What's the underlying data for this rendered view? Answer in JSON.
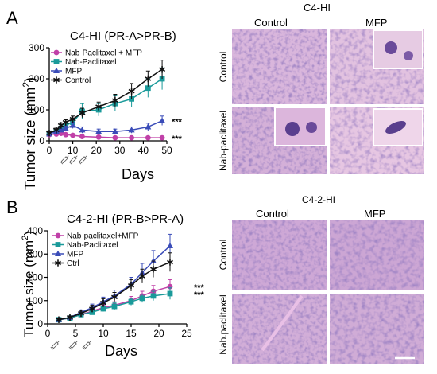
{
  "panels": [
    {
      "letter": "A",
      "chart_title": "C4-HI (PR-A>PR-B)",
      "ylabel": "Tumor size (mm",
      "ylabel_sup": "2",
      "ylabel_close": ")",
      "xlabel": "Days",
      "significance": [
        "***",
        "***"
      ],
      "histo": {
        "title": "C4-HI",
        "col_labels": [
          "Control",
          "MFP"
        ],
        "row_labels": [
          "Control",
          "Nab-paclitaxel"
        ]
      }
    },
    {
      "letter": "B",
      "chart_title": "C4-2-HI (PR-B>PR-A)",
      "ylabel": "Tumor size (mm",
      "ylabel_sup": "2",
      "ylabel_close": ")",
      "xlabel": "Days",
      "significance": [
        "***",
        "***"
      ],
      "histo": {
        "title": "C4-2-HI",
        "col_labels": [
          "Control",
          "MFP"
        ],
        "row_labels": [
          "Control",
          "Nab.paclitaxel"
        ]
      }
    }
  ],
  "colors": {
    "combo": "#c040a8",
    "nab": "#1a9a9a",
    "mfp": "#3a4cb8",
    "ctrl": "#111111",
    "tissue_bg": "#d4b0d8",
    "nuclei": "#5a3f8e"
  },
  "chart_data": [
    {
      "type": "line",
      "title": "C4-HI (PR-A>PR-B)",
      "xlabel": "Days",
      "ylabel": "Tumor size (mm2)",
      "xlim": [
        0,
        50
      ],
      "ylim": [
        0,
        300
      ],
      "xticks": [
        0,
        10,
        20,
        30,
        40,
        50
      ],
      "yticks": [
        0,
        100,
        200,
        300
      ],
      "legend": "top-left",
      "series": [
        {
          "name": "Nab-Paclitaxel + MFP",
          "marker": "circle",
          "color_key": "combo",
          "x": [
            0,
            3,
            5,
            7,
            10,
            14,
            21,
            28,
            35,
            42,
            48
          ],
          "y": [
            20,
            22,
            24,
            20,
            18,
            14,
            12,
            10,
            10,
            10,
            10
          ],
          "err": [
            4,
            4,
            4,
            4,
            3,
            3,
            3,
            2,
            2,
            2,
            2
          ]
        },
        {
          "name": "Nab-Paclitaxel",
          "marker": "square",
          "color_key": "nab",
          "x": [
            0,
            3,
            5,
            7,
            10,
            14,
            21,
            28,
            35,
            42,
            48
          ],
          "y": [
            25,
            30,
            40,
            50,
            60,
            95,
            100,
            120,
            135,
            170,
            200
          ],
          "err": [
            5,
            6,
            8,
            10,
            12,
            25,
            20,
            25,
            25,
            30,
            35
          ]
        },
        {
          "name": "MFP",
          "marker": "triangle",
          "color_key": "mfp",
          "x": [
            0,
            3,
            5,
            7,
            10,
            14,
            21,
            28,
            35,
            42,
            48
          ],
          "y": [
            22,
            30,
            35,
            40,
            50,
            35,
            30,
            30,
            35,
            45,
            65
          ],
          "err": [
            4,
            5,
            6,
            8,
            10,
            10,
            8,
            8,
            10,
            12,
            15
          ]
        },
        {
          "name": "Control",
          "marker": "star",
          "color_key": "ctrl",
          "x": [
            0,
            3,
            5,
            7,
            10,
            14,
            21,
            28,
            35,
            42,
            48
          ],
          "y": [
            25,
            35,
            50,
            60,
            70,
            90,
            110,
            130,
            160,
            200,
            230
          ],
          "err": [
            5,
            6,
            8,
            8,
            10,
            15,
            15,
            20,
            25,
            25,
            30
          ]
        }
      ]
    },
    {
      "type": "line",
      "title": "C4-2-HI (PR-B>PR-A)",
      "xlabel": "Days",
      "ylabel": "Tumor size (mm2)",
      "xlim": [
        0,
        25
      ],
      "ylim": [
        0,
        400
      ],
      "xticks": [
        0,
        5,
        10,
        15,
        20,
        25
      ],
      "yticks": [
        0,
        100,
        200,
        300,
        400
      ],
      "legend": "top-left",
      "series": [
        {
          "name": "Nab-paclitaxel+MFP",
          "marker": "circle",
          "color_key": "combo",
          "x": [
            2,
            4,
            6,
            8,
            10,
            12,
            15,
            17,
            19,
            22
          ],
          "y": [
            18,
            25,
            40,
            55,
            70,
            80,
            100,
            120,
            140,
            160
          ],
          "err": [
            4,
            5,
            8,
            10,
            12,
            15,
            18,
            20,
            25,
            30
          ]
        },
        {
          "name": "Nab-Paclitaxel",
          "marker": "square",
          "color_key": "nab",
          "x": [
            2,
            4,
            6,
            8,
            10,
            12,
            15,
            17,
            19,
            22
          ],
          "y": [
            18,
            25,
            40,
            50,
            65,
            75,
            95,
            110,
            120,
            130
          ],
          "err": [
            4,
            5,
            8,
            10,
            12,
            15,
            15,
            18,
            20,
            25
          ]
        },
        {
          "name": "MFP",
          "marker": "triangle",
          "color_key": "mfp",
          "x": [
            2,
            4,
            6,
            8,
            10,
            12,
            15,
            17,
            19,
            22
          ],
          "y": [
            18,
            28,
            50,
            70,
            95,
            120,
            170,
            220,
            270,
            335
          ],
          "err": [
            4,
            6,
            10,
            15,
            20,
            25,
            30,
            40,
            45,
            50
          ]
        },
        {
          "name": "Ctrl",
          "marker": "star",
          "color_key": "ctrl",
          "x": [
            2,
            4,
            6,
            8,
            10,
            12,
            15,
            17,
            19,
            22
          ],
          "y": [
            18,
            28,
            45,
            65,
            90,
            115,
            165,
            205,
            235,
            265
          ],
          "err": [
            4,
            6,
            10,
            15,
            18,
            20,
            25,
            30,
            35,
            40
          ]
        }
      ]
    }
  ]
}
